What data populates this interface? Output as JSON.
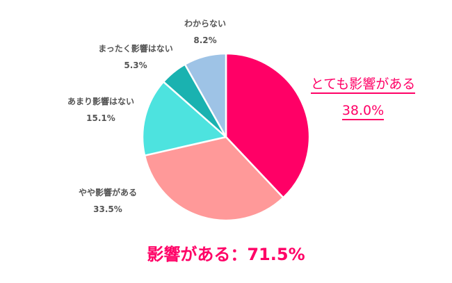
{
  "chart_data": {
    "type": "pie",
    "title": "",
    "start_angle": "12 o'clock, clockwise",
    "slices": [
      {
        "label": "とても影響がある",
        "value": 38.0,
        "display": "38.0%",
        "color": "#ff0066"
      },
      {
        "label": "やや影響がある",
        "value": 33.5,
        "display": "33.5%",
        "color": "#ff9999"
      },
      {
        "label": "あまり影響はない",
        "value": 15.1,
        "display": "15.1%",
        "color": "#4de3df"
      },
      {
        "label": "まったく影響はない",
        "value": 5.3,
        "display": "5.3%",
        "color": "#1ab2b0"
      },
      {
        "label": "わからない",
        "value": 8.2,
        "display": "8.2%",
        "color": "#9ec3e6"
      }
    ],
    "annotation": "影響がある：71.5%",
    "legend": "none (direct labels)"
  },
  "labels": {
    "very": {
      "name": "とても影響がある",
      "value": "38.0%"
    },
    "some": {
      "name": "やや影響がある",
      "value": "33.5%"
    },
    "little": {
      "name": "あまり影響はない",
      "value": "15.1%"
    },
    "none": {
      "name": "まったく影響はない",
      "value": "5.3%"
    },
    "unknown": {
      "name": "わからない",
      "value": "8.2%"
    }
  },
  "summary": "影響がある：71.5%"
}
